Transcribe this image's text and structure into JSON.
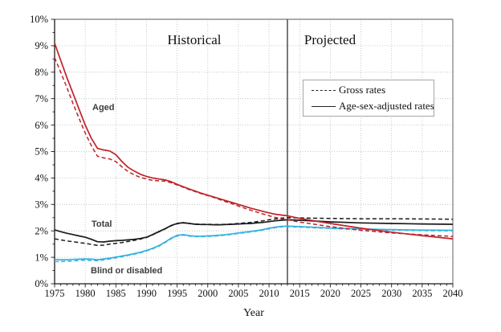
{
  "figure": {
    "region_labels": {
      "historical": "Historical",
      "projected": "Projected"
    },
    "xlabel": "Year",
    "legend": [
      {
        "style": "dashed",
        "label": "Gross rates"
      },
      {
        "style": "solid",
        "label": "Age-sex-adjusted rates"
      }
    ],
    "series_labels": [
      {
        "text": "Aged"
      },
      {
        "text": "Total"
      },
      {
        "text": "Blind or disabled"
      }
    ]
  },
  "chart_data": {
    "type": "line",
    "title": "",
    "xlabel": "Year",
    "ylabel": "",
    "xlim": [
      1975,
      2040
    ],
    "ylim": [
      0,
      10
    ],
    "x_ticks": [
      1975,
      1980,
      1985,
      1990,
      1995,
      2000,
      2005,
      2010,
      2015,
      2020,
      2025,
      2030,
      2035,
      2040
    ],
    "x_minor_tick_step": 1,
    "y_tick_labels": [
      "0%",
      "1%",
      "2%",
      "3%",
      "4%",
      "5%",
      "6%",
      "7%",
      "8%",
      "9%",
      "10%"
    ],
    "y_minor_tick_step": 0.5,
    "grid": "dotted",
    "grid_color": "#bbbbbb",
    "axis_color": "#1a1a1a",
    "border_color": "#7a7a7a",
    "divider_x": 2013,
    "divider_color": "#404040",
    "legend_position": "upper-right-of-divider",
    "x": [
      1975,
      1976,
      1977,
      1978,
      1979,
      1980,
      1981,
      1982,
      1983,
      1984,
      1985,
      1986,
      1987,
      1988,
      1989,
      1990,
      1991,
      1992,
      1993,
      1994,
      1995,
      1996,
      1997,
      1998,
      1999,
      2000,
      2001,
      2002,
      2003,
      2004,
      2005,
      2006,
      2007,
      2008,
      2009,
      2010,
      2011,
      2012,
      2013,
      2015,
      2020,
      2025,
      2030,
      2035,
      2040
    ],
    "series": [
      {
        "id": "blind-gross",
        "group": "Blind or disabled",
        "rate_type": "Gross rates",
        "style": "dashed",
        "color": "#35b2e0",
        "values": [
          0.84,
          0.84,
          0.85,
          0.86,
          0.88,
          0.89,
          0.88,
          0.87,
          0.9,
          0.94,
          0.98,
          1.02,
          1.07,
          1.12,
          1.17,
          1.24,
          1.32,
          1.42,
          1.55,
          1.7,
          1.81,
          1.84,
          1.8,
          1.78,
          1.78,
          1.79,
          1.8,
          1.82,
          1.84,
          1.87,
          1.9,
          1.93,
          1.96,
          1.99,
          2.03,
          2.08,
          2.12,
          2.15,
          2.16,
          2.14,
          2.09,
          2.05,
          2.03,
          2.01,
          2.0
        ]
      },
      {
        "id": "blind-adjusted",
        "group": "Blind or disabled",
        "rate_type": "Age-sex-adjusted rates",
        "style": "solid",
        "color": "#35b2e0",
        "values": [
          0.92,
          0.91,
          0.91,
          0.92,
          0.93,
          0.94,
          0.93,
          0.91,
          0.94,
          0.97,
          1.01,
          1.05,
          1.09,
          1.14,
          1.19,
          1.26,
          1.34,
          1.44,
          1.57,
          1.72,
          1.83,
          1.86,
          1.82,
          1.8,
          1.8,
          1.81,
          1.82,
          1.84,
          1.86,
          1.89,
          1.92,
          1.95,
          1.98,
          2.01,
          2.05,
          2.1,
          2.14,
          2.17,
          2.18,
          2.16,
          2.11,
          2.07,
          2.05,
          2.03,
          2.02
        ]
      },
      {
        "id": "total-gross",
        "group": "Total",
        "rate_type": "Gross rates",
        "style": "dashed",
        "color": "#1a1a1a",
        "values": [
          1.7,
          1.66,
          1.62,
          1.59,
          1.56,
          1.53,
          1.49,
          1.45,
          1.46,
          1.5,
          1.53,
          1.56,
          1.6,
          1.64,
          1.69,
          1.75,
          1.85,
          1.96,
          2.07,
          2.19,
          2.27,
          2.3,
          2.28,
          2.26,
          2.25,
          2.25,
          2.24,
          2.24,
          2.25,
          2.26,
          2.28,
          2.3,
          2.32,
          2.35,
          2.38,
          2.42,
          2.45,
          2.48,
          2.5,
          2.49,
          2.47,
          2.46,
          2.46,
          2.45,
          2.44
        ]
      },
      {
        "id": "total-adjusted",
        "group": "Total",
        "rate_type": "Age-sex-adjusted rates",
        "style": "solid",
        "color": "#1a1a1a",
        "values": [
          2.04,
          1.97,
          1.91,
          1.86,
          1.81,
          1.76,
          1.68,
          1.59,
          1.58,
          1.61,
          1.63,
          1.64,
          1.66,
          1.68,
          1.71,
          1.76,
          1.86,
          1.97,
          2.08,
          2.2,
          2.28,
          2.31,
          2.28,
          2.25,
          2.24,
          2.24,
          2.23,
          2.23,
          2.24,
          2.25,
          2.26,
          2.27,
          2.28,
          2.3,
          2.32,
          2.35,
          2.38,
          2.4,
          2.42,
          2.4,
          2.34,
          2.3,
          2.28,
          2.26,
          2.25
        ]
      },
      {
        "id": "aged-gross",
        "group": "Aged",
        "rate_type": "Gross rates",
        "style": "dashed",
        "color": "#bf2229",
        "values": [
          8.55,
          8.0,
          7.42,
          6.82,
          6.25,
          5.7,
          5.22,
          4.82,
          4.76,
          4.72,
          4.62,
          4.42,
          4.24,
          4.12,
          4.02,
          3.96,
          3.91,
          3.89,
          3.88,
          3.82,
          3.74,
          3.65,
          3.56,
          3.48,
          3.4,
          3.33,
          3.26,
          3.18,
          3.1,
          3.02,
          2.94,
          2.86,
          2.78,
          2.71,
          2.64,
          2.57,
          2.51,
          2.46,
          2.42,
          2.33,
          2.16,
          2.02,
          1.92,
          1.85,
          1.79
        ]
      },
      {
        "id": "aged-adjusted",
        "group": "Aged",
        "rate_type": "Age-sex-adjusted rates",
        "style": "solid",
        "color": "#bf2229",
        "values": [
          9.1,
          8.45,
          7.8,
          7.2,
          6.6,
          6.0,
          5.5,
          5.12,
          5.06,
          5.02,
          4.88,
          4.62,
          4.4,
          4.26,
          4.14,
          4.06,
          4.0,
          3.96,
          3.93,
          3.86,
          3.76,
          3.67,
          3.58,
          3.5,
          3.42,
          3.35,
          3.28,
          3.21,
          3.14,
          3.07,
          3.0,
          2.93,
          2.86,
          2.8,
          2.74,
          2.68,
          2.63,
          2.6,
          2.57,
          2.47,
          2.28,
          2.1,
          1.95,
          1.82,
          1.7
        ]
      }
    ]
  }
}
